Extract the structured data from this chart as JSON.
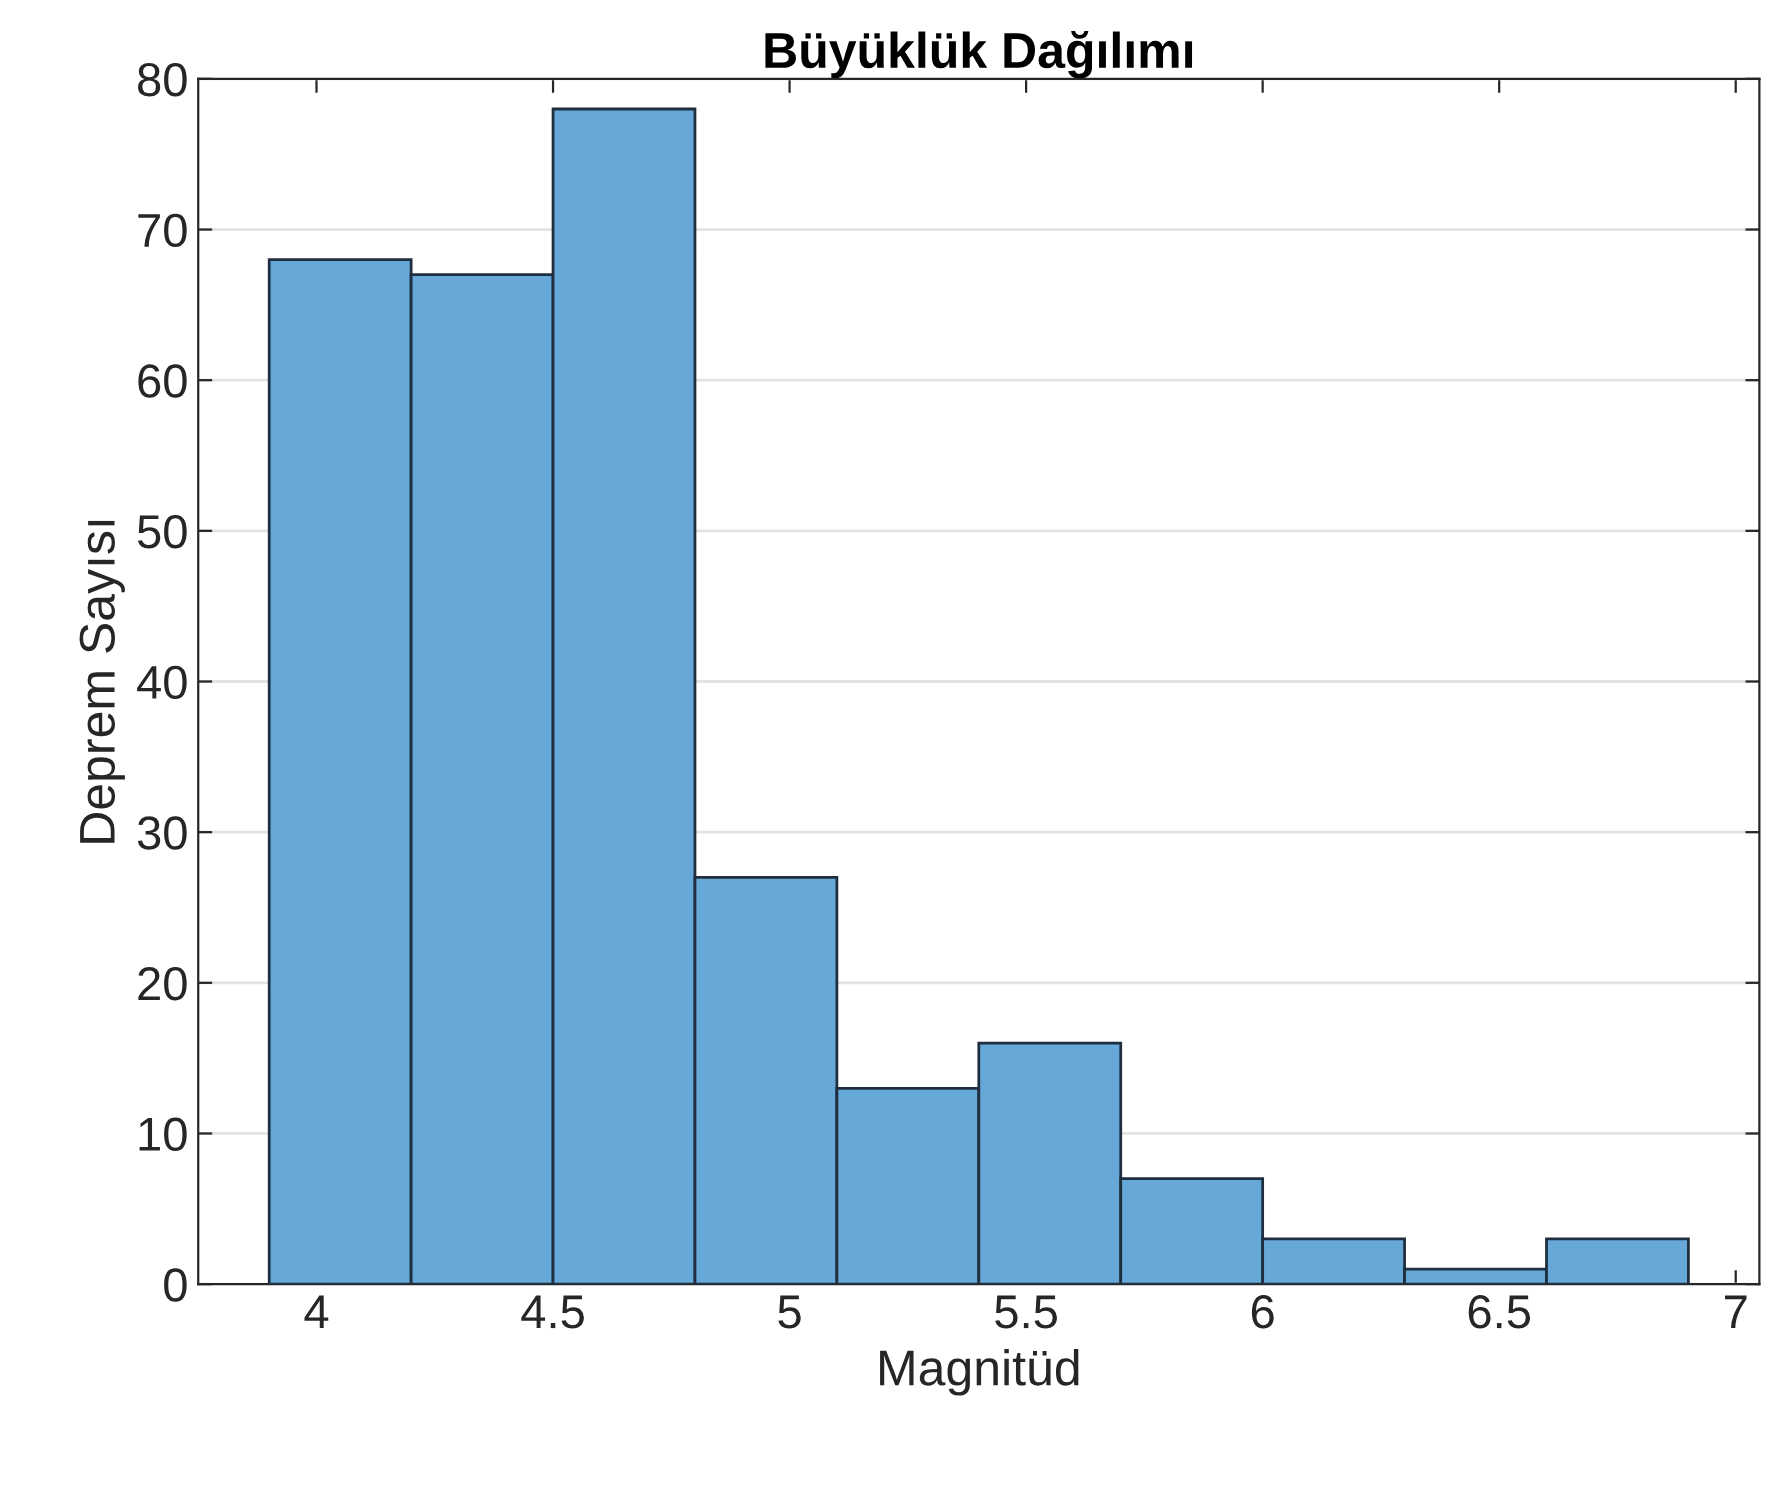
{
  "chart_data": {
    "type": "histogram",
    "title": "Büyüklük Dağılımı",
    "xlabel": "Magnitüd",
    "ylabel": "Deprem Sayısı",
    "bins": [
      3.9,
      4.2,
      4.5,
      4.8,
      5.1,
      5.4,
      5.7,
      6.0,
      6.3,
      6.6,
      6.9
    ],
    "values": [
      68,
      67,
      78,
      27,
      13,
      16,
      7,
      3,
      1,
      3
    ],
    "color": "#66a9d9",
    "xlim": [
      3.75,
      7.05
    ],
    "xticks": [
      4,
      4.5,
      5,
      5.5,
      6,
      6.5,
      7
    ],
    "ylim": [
      0,
      80
    ],
    "yticks": [
      0,
      10,
      20,
      30,
      40,
      50,
      60,
      70,
      80
    ],
    "grid": "y",
    "legend": false
  }
}
